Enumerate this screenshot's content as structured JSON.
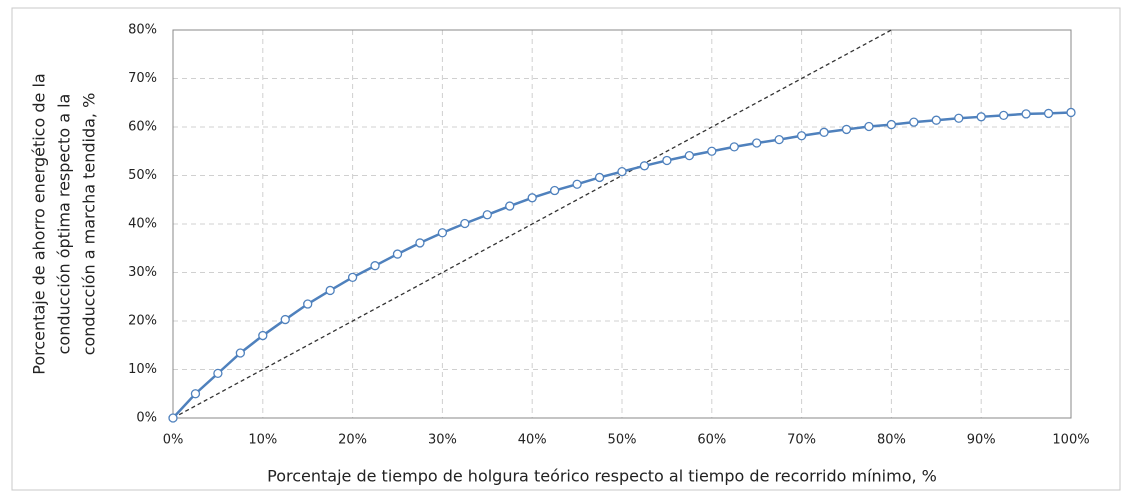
{
  "chart_data": {
    "type": "line",
    "xlabel": "Porcentaje de tiempo de holgura teórico respecto al tiempo de recorrido mínimo, %",
    "ylabel": [
      "Porcentaje de ahorro  energético de la",
      "conducción óptima respecto a la",
      "conducción a marcha tendida, %"
    ],
    "x": [
      0,
      2.5,
      5,
      7.5,
      10,
      12.5,
      15,
      17.5,
      20,
      22.5,
      25,
      27.5,
      30,
      32.5,
      35,
      37.5,
      40,
      42.5,
      45,
      47.5,
      50,
      52.5,
      55,
      57.5,
      60,
      62.5,
      65,
      67.5,
      70,
      72.5,
      75,
      77.5,
      80,
      82.5,
      85,
      87.5,
      90,
      92.5,
      95,
      97.5,
      100
    ],
    "series": [
      {
        "color": "#4f81bd",
        "values": [
          0,
          5,
          9.2,
          13.4,
          17,
          20.3,
          23.5,
          26.3,
          29,
          31.4,
          33.8,
          36.1,
          38.2,
          40.1,
          41.9,
          43.7,
          45.4,
          46.9,
          48.2,
          49.6,
          50.8,
          52,
          53.1,
          54.1,
          55,
          55.9,
          56.7,
          57.4,
          58.2,
          58.9,
          59.5,
          60.1,
          60.5,
          61,
          61.4,
          61.8,
          62.1,
          62.4,
          62.7,
          62.8,
          63
        ]
      }
    ],
    "reference_line": {
      "x": [
        0,
        80
      ],
      "y": [
        0,
        80
      ],
      "color": "#333333",
      "style": "dashed"
    },
    "xlim": [
      0,
      100
    ],
    "ylim": [
      0,
      80
    ],
    "xticks": [
      {
        "value": 0,
        "label": "0%"
      },
      {
        "value": 10,
        "label": "10%"
      },
      {
        "value": 20,
        "label": "20%"
      },
      {
        "value": 30,
        "label": "30%"
      },
      {
        "value": 40,
        "label": "40%"
      },
      {
        "value": 50,
        "label": "50%"
      },
      {
        "value": 60,
        "label": "60%"
      },
      {
        "value": 70,
        "label": "70%"
      },
      {
        "value": 80,
        "label": "80%"
      },
      {
        "value": 90,
        "label": "90%"
      },
      {
        "value": 100,
        "label": "100%"
      }
    ],
    "yticks": [
      {
        "value": 0,
        "label": "0%"
      },
      {
        "value": 10,
        "label": "10%"
      },
      {
        "value": 20,
        "label": "20%"
      },
      {
        "value": 30,
        "label": "30%"
      },
      {
        "value": 40,
        "label": "40%"
      },
      {
        "value": 50,
        "label": "50%"
      },
      {
        "value": 60,
        "label": "60%"
      },
      {
        "value": 70,
        "label": "70%"
      },
      {
        "value": 80,
        "label": "80%"
      }
    ],
    "grid": true
  }
}
